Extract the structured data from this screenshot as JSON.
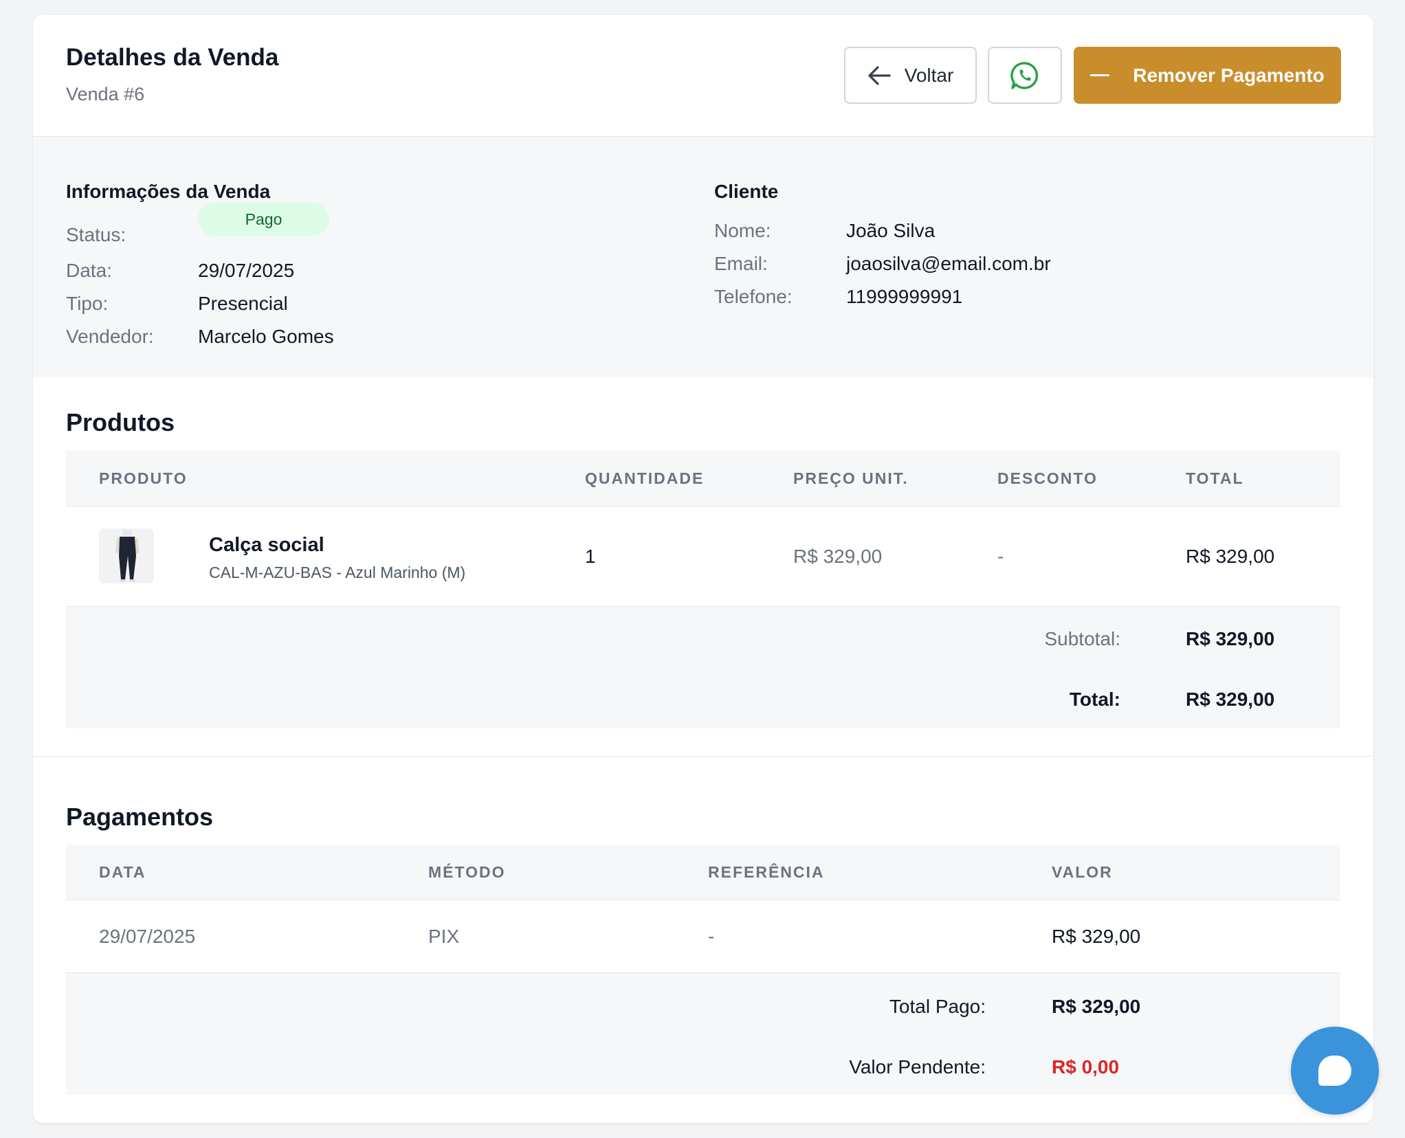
{
  "header": {
    "title": "Detalhes da Venda",
    "subtitle": "Venda #6",
    "back_label": "Voltar",
    "remove_label": "Remover Pagamento"
  },
  "sale_info": {
    "heading": "Informações da Venda",
    "status_label": "Status:",
    "status_value": "Pago",
    "date_label": "Data:",
    "date_value": "29/07/2025",
    "type_label": "Tipo:",
    "type_value": "Presencial",
    "seller_label": "Vendedor:",
    "seller_value": "Marcelo Gomes"
  },
  "client": {
    "heading": "Cliente",
    "name_label": "Nome:",
    "name_value": "João Silva",
    "email_label": "Email:",
    "email_value": "joaosilva@email.com.br",
    "phone_label": "Telefone:",
    "phone_value": "11999999991"
  },
  "products": {
    "heading": "Produtos",
    "columns": [
      "PRODUTO",
      "QUANTIDADE",
      "PREÇO UNIT.",
      "DESCONTO",
      "TOTAL"
    ],
    "rows": [
      {
        "name": "Calça social",
        "sku": "CAL-M-AZU-BAS - Azul Marinho (M)",
        "quantity": "1",
        "unit_price": "R$ 329,00",
        "discount": "-",
        "total": "R$ 329,00"
      }
    ],
    "subtotal_label": "Subtotal:",
    "subtotal_value": "R$ 329,00",
    "total_label": "Total:",
    "total_value": "R$ 329,00"
  },
  "payments": {
    "heading": "Pagamentos",
    "columns": [
      "DATA",
      "MÉTODO",
      "REFERÊNCIA",
      "VALOR"
    ],
    "rows": [
      {
        "date": "29/07/2025",
        "method": "PIX",
        "reference": "-",
        "value": "R$ 329,00"
      }
    ],
    "total_paid_label": "Total Pago:",
    "total_paid_value": "R$ 329,00",
    "pending_label": "Valor Pendente:",
    "pending_value": "R$ 0,00"
  },
  "colors": {
    "accent": "#c98d2c",
    "status_bg": "#dcfce7",
    "status_text": "#166534",
    "pending": "#dc2626",
    "whatsapp": "#25a244",
    "chat_fab": "#3b93dc"
  },
  "icons": {
    "back": "arrow-left-icon",
    "whatsapp": "whatsapp-icon",
    "remove": "minus-icon",
    "chat": "chat-bubble-icon"
  }
}
